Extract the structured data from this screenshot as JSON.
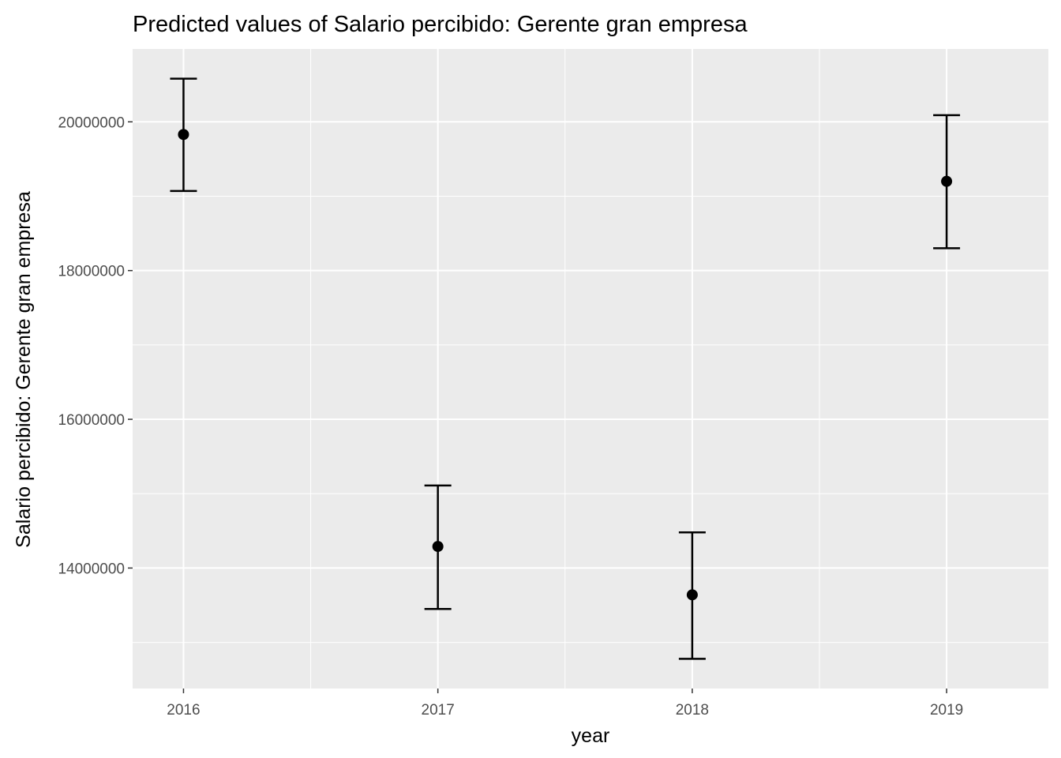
{
  "chart_data": {
    "type": "scatter",
    "title": "Predicted values of Salario percibido: Gerente gran empresa",
    "xlabel": "year",
    "ylabel": "Salario percibido: Gerente gran empresa",
    "categories": [
      "2016",
      "2017",
      "2018",
      "2019"
    ],
    "series": [
      {
        "values": [
          19830000,
          14290000,
          13640000,
          19200000
        ],
        "lower": [
          19070000,
          13450000,
          12780000,
          18300000
        ],
        "upper": [
          20580000,
          15110000,
          14480000,
          20090000
        ]
      }
    ],
    "y_ticks": [
      "14000000",
      "16000000",
      "18000000",
      "20000000"
    ],
    "ylim": [
      12380000,
      20980000
    ],
    "grid": true,
    "legend": "none",
    "colors": {
      "panel": "#ebebeb",
      "grid": "#ffffff",
      "point": "#000000"
    }
  }
}
